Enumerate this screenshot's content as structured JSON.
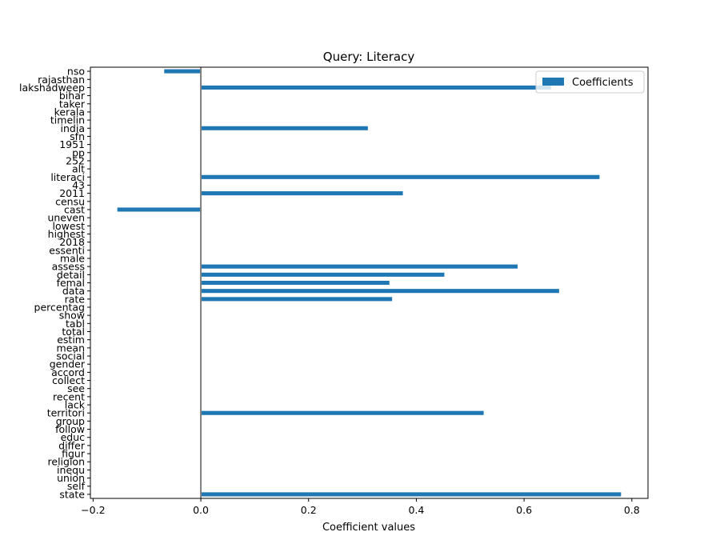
{
  "chart_data": {
    "type": "bar",
    "orientation": "horizontal",
    "title": "Query: Literacy",
    "xlabel": "Coefficient values",
    "ylabel": "",
    "xlim": [
      -0.205,
      0.83
    ],
    "x_ticks": [
      -0.2,
      0.0,
      0.2,
      0.4,
      0.6,
      0.8
    ],
    "x_tick_labels": [
      "−0.2",
      "0.0",
      "0.2",
      "0.4",
      "0.6",
      "0.8"
    ],
    "zero_line": true,
    "grid": false,
    "legend_position": "upper-right",
    "bar_color": "#1f77b4",
    "categories": [
      "state",
      "self",
      "union",
      "inequ",
      "religion",
      "figur",
      "differ",
      "educ",
      "follow",
      "group",
      "territori",
      "lack",
      "recent",
      "see",
      "collect",
      "accord",
      "gender",
      "social",
      "mean",
      "estim",
      "total",
      "tabl",
      "show",
      "percentag",
      "rate",
      "data",
      "femal",
      "detail",
      "assess",
      "male",
      "essenti",
      "2018",
      "highest",
      "lowest",
      "uneven",
      "cast",
      "censu",
      "2011",
      "43",
      "literaci",
      "alt",
      "252",
      "pp",
      "1951",
      "sfn",
      "india",
      "timelin",
      "kerala",
      "taker",
      "bihar",
      "lakshadweep",
      "rajasthan",
      "nso"
    ],
    "series": [
      {
        "name": "Coefficients",
        "values": [
          0.78,
          0,
          0,
          0,
          0,
          0,
          0,
          0,
          0,
          0,
          0.525,
          0,
          0,
          0,
          0,
          0,
          0,
          0,
          0,
          0,
          0,
          0,
          0,
          0,
          0.355,
          0.665,
          0.35,
          0.452,
          0.588,
          0,
          0,
          0,
          0,
          0,
          0,
          -0.155,
          0,
          0.375,
          0,
          0.74,
          0,
          0,
          0,
          0,
          0,
          0.31,
          0,
          0,
          0,
          0,
          0.65,
          0,
          -0.068
        ]
      }
    ]
  }
}
